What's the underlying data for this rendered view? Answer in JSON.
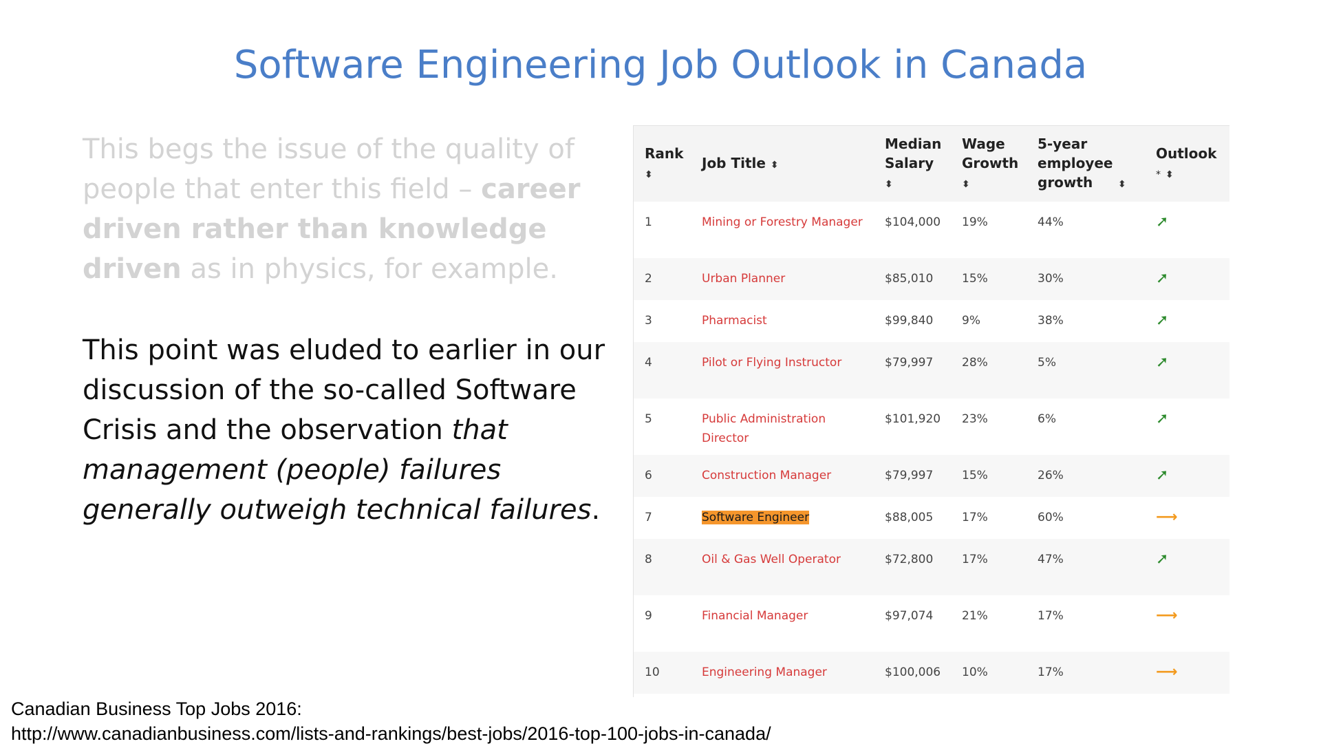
{
  "slide": {
    "title": "Software Engineering Job Outlook in Canada"
  },
  "text": {
    "faded_part1": "This begs the issue of the quality of people that enter this field – ",
    "faded_bold": "career driven rather than knowledge driven",
    "faded_part2": " as in physics, for example.",
    "main_part1": "This point was eluded to earlier in our discussion of the so-called Software Crisis and the observation ",
    "main_italic": "that management (people) failures generally outweigh technical failures",
    "main_part2": "."
  },
  "table": {
    "headers": {
      "rank": "Rank",
      "job_title": "Job Title",
      "median_salary": "Median Salary",
      "wage_growth": "Wage Growth",
      "employee_growth": "5-year employee growth",
      "outlook": "Outlook",
      "outlook_note": "*",
      "sort_icon": "⬍"
    },
    "rows": [
      {
        "rank": "1",
        "title": "Mining or Forestry Manager",
        "salary": "$104,000",
        "wage": "19%",
        "growth": "44%",
        "outlook": "up-arrow-icon"
      },
      {
        "rank": "2",
        "title": "Urban Planner",
        "salary": "$85,010",
        "wage": "15%",
        "growth": "30%",
        "outlook": "up-arrow-icon"
      },
      {
        "rank": "3",
        "title": "Pharmacist",
        "salary": "$99,840",
        "wage": "9%",
        "growth": "38%",
        "outlook": "up-arrow-icon"
      },
      {
        "rank": "4",
        "title": "Pilot or Flying Instructor",
        "salary": "$79,997",
        "wage": "28%",
        "growth": "5%",
        "outlook": "up-arrow-icon"
      },
      {
        "rank": "5",
        "title": "Public Administration Director",
        "salary": "$101,920",
        "wage": "23%",
        "growth": "6%",
        "outlook": "up-arrow-icon"
      },
      {
        "rank": "6",
        "title": "Construction Manager",
        "salary": "$79,997",
        "wage": "15%",
        "growth": "26%",
        "outlook": "up-arrow-icon"
      },
      {
        "rank": "7",
        "title": "Software Engineer",
        "salary": "$88,005",
        "wage": "17%",
        "growth": "60%",
        "outlook": "right-arrow-icon"
      },
      {
        "rank": "8",
        "title": "Oil & Gas Well Operator",
        "salary": "$72,800",
        "wage": "17%",
        "growth": "47%",
        "outlook": "up-arrow-icon"
      },
      {
        "rank": "9",
        "title": "Financial Manager",
        "salary": "$97,074",
        "wage": "21%",
        "growth": "17%",
        "outlook": "right-arrow-icon"
      },
      {
        "rank": "10",
        "title": "Engineering Manager",
        "salary": "$100,006",
        "wage": "10%",
        "growth": "17%",
        "outlook": "right-arrow-icon"
      }
    ],
    "arrow_up_glyph": "➚",
    "arrow_right_glyph": "⟶"
  },
  "source": {
    "line1": "Canadian Business Top Jobs 2016:",
    "line2": "http://www.canadianbusiness.com/lists-and-rankings/best-jobs/2016-top-100-jobs-in-canada/"
  },
  "colors": {
    "title": "#4a7ec8",
    "job_link": "#d63a3a",
    "highlight": "#f5962c",
    "outlook_up": "#2c8a2c",
    "outlook_flat": "#f39a1e"
  }
}
